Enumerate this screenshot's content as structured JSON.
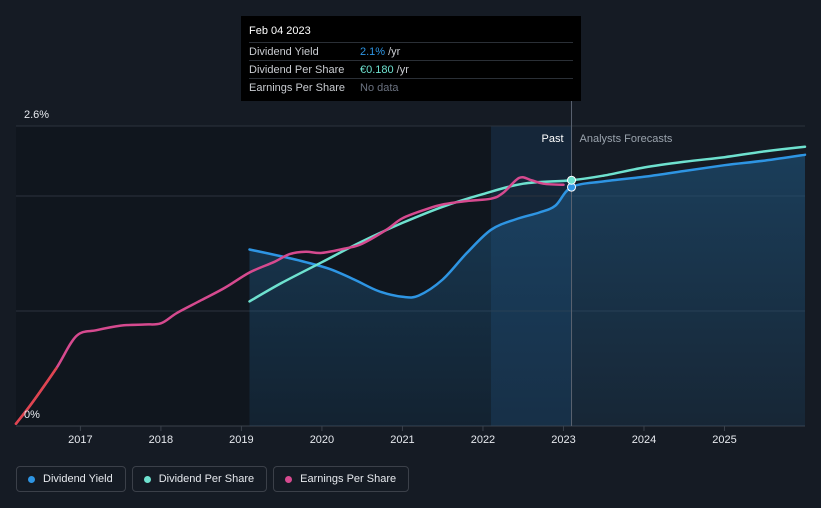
{
  "chart_data": {
    "type": "line",
    "title": "",
    "y_axis": {
      "min_label": "0%",
      "max_label": "2.6%",
      "ylim": [
        0,
        2.6
      ]
    },
    "x_ticks": [
      "2017",
      "2018",
      "2019",
      "2020",
      "2021",
      "2022",
      "2023",
      "2024",
      "2025"
    ],
    "x_range": [
      2016.2,
      2026.0
    ],
    "past_label": "Past",
    "forecast_label": "Analysts Forecasts",
    "forecast_start": 2023.1,
    "past_highlight_start": 2022.1,
    "series": [
      {
        "name": "Dividend Yield",
        "color": "#2e95e3",
        "filled": true,
        "points": [
          [
            2019.1,
            1.53
          ],
          [
            2019.5,
            1.47
          ],
          [
            2019.8,
            1.42
          ],
          [
            2020.1,
            1.36
          ],
          [
            2020.4,
            1.27
          ],
          [
            2020.7,
            1.17
          ],
          [
            2021.0,
            1.12
          ],
          [
            2021.2,
            1.13
          ],
          [
            2021.5,
            1.27
          ],
          [
            2021.8,
            1.5
          ],
          [
            2022.1,
            1.7
          ],
          [
            2022.4,
            1.79
          ],
          [
            2022.7,
            1.85
          ],
          [
            2022.9,
            1.91
          ],
          [
            2023.1,
            2.07
          ],
          [
            2023.5,
            2.12
          ],
          [
            2024.0,
            2.16
          ],
          [
            2024.5,
            2.21
          ],
          [
            2025.0,
            2.26
          ],
          [
            2025.5,
            2.3
          ],
          [
            2026.0,
            2.35
          ]
        ]
      },
      {
        "name": "Dividend Per Share",
        "color": "#6ee1cf",
        "filled": false,
        "points": [
          [
            2019.1,
            1.08
          ],
          [
            2019.5,
            1.24
          ],
          [
            2020.0,
            1.42
          ],
          [
            2020.5,
            1.6
          ],
          [
            2021.0,
            1.76
          ],
          [
            2021.5,
            1.9
          ],
          [
            2022.0,
            2.01
          ],
          [
            2022.5,
            2.1
          ],
          [
            2023.1,
            2.13
          ],
          [
            2023.5,
            2.17
          ],
          [
            2024.0,
            2.24
          ],
          [
            2024.5,
            2.29
          ],
          [
            2025.0,
            2.33
          ],
          [
            2025.5,
            2.38
          ],
          [
            2026.0,
            2.42
          ]
        ]
      },
      {
        "name": "Earnings Per Share",
        "color": "#d64a8f",
        "filled": false,
        "points": [
          [
            2016.2,
            0.02
          ],
          [
            2016.4,
            0.2
          ],
          [
            2016.7,
            0.5
          ],
          [
            2016.95,
            0.78
          ],
          [
            2017.2,
            0.83
          ],
          [
            2017.5,
            0.87
          ],
          [
            2017.8,
            0.88
          ],
          [
            2018.0,
            0.89
          ],
          [
            2018.2,
            0.98
          ],
          [
            2018.5,
            1.09
          ],
          [
            2018.8,
            1.2
          ],
          [
            2019.1,
            1.33
          ],
          [
            2019.4,
            1.42
          ],
          [
            2019.6,
            1.49
          ],
          [
            2019.8,
            1.51
          ],
          [
            2020.0,
            1.5
          ],
          [
            2020.3,
            1.54
          ],
          [
            2020.5,
            1.58
          ],
          [
            2020.8,
            1.7
          ],
          [
            2021.0,
            1.8
          ],
          [
            2021.3,
            1.88
          ],
          [
            2021.5,
            1.92
          ],
          [
            2021.8,
            1.95
          ],
          [
            2022.1,
            1.97
          ],
          [
            2022.25,
            2.02
          ],
          [
            2022.45,
            2.15
          ],
          [
            2022.6,
            2.13
          ],
          [
            2022.75,
            2.1
          ],
          [
            2023.0,
            2.09
          ]
        ]
      }
    ],
    "marker_x": 2023.1
  },
  "tooltip": {
    "date": "Feb 04 2023",
    "rows": [
      {
        "name": "Dividend Yield",
        "value": "2.1%",
        "unit": "/yr",
        "value_color": "#2e95e3"
      },
      {
        "name": "Dividend Per Share",
        "value": "€0.180",
        "unit": "/yr",
        "value_color": "#6ee1cf"
      },
      {
        "name": "Earnings Per Share",
        "value": "No data",
        "unit": "",
        "value_color": "#6b7280"
      }
    ]
  },
  "legend": [
    {
      "label": "Dividend Yield",
      "color": "#2e95e3"
    },
    {
      "label": "Dividend Per Share",
      "color": "#6ee1cf"
    },
    {
      "label": "Earnings Per Share",
      "color": "#d64a8f"
    }
  ]
}
